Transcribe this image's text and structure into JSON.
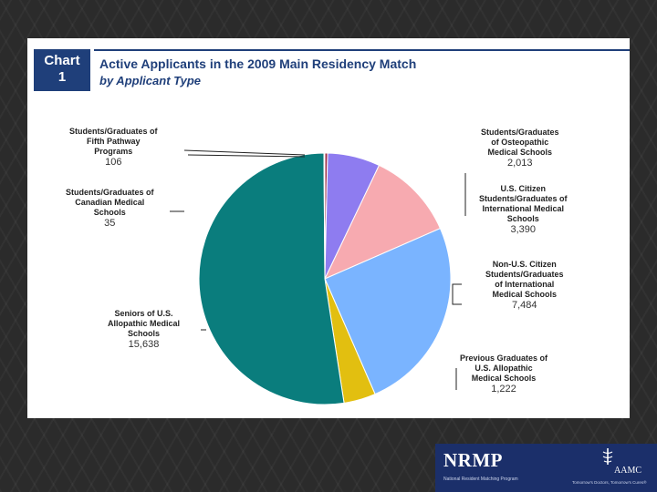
{
  "badge": {
    "line1": "Chart",
    "line2": "1"
  },
  "chart_data": {
    "type": "pie",
    "title": "Active Applicants in the 2009 Main Residency Match",
    "subtitle": "by Applicant Type",
    "start_angle_deg": 0,
    "direction": "clockwise",
    "slices": [
      {
        "label": "Students/Graduates of Fifth Pathway Programs",
        "value": 106,
        "value_text": "106",
        "color": "#a0304a"
      },
      {
        "label": "Students/Graduates of Osteopathic Medical Schools",
        "value": 2013,
        "value_text": "2,013",
        "color": "#8e7cf0"
      },
      {
        "label": "U.S. Citizen Students/Graduates of International Medical Schools",
        "value": 3390,
        "value_text": "3,390",
        "color": "#f7aab0"
      },
      {
        "label": "Non-U.S. Citizen Students/Graduates of International Medical Schools",
        "value": 7484,
        "value_text": "7,484",
        "color": "#7ab4ff"
      },
      {
        "label": "Previous Graduates of U.S. Allopathic Medical Schools",
        "value": 1222,
        "value_text": "1,222",
        "color": "#e2bf10"
      },
      {
        "label": "Seniors of U.S. Allopathic Medical Schools",
        "value": 15638,
        "value_text": "15,638",
        "color": "#0a7d7d"
      },
      {
        "label": "Students/Graduates of Canadian Medical Schools",
        "value": 35,
        "value_text": "35",
        "color": "#4b6fa8"
      }
    ]
  },
  "callouts": {
    "fifth": {
      "lines": [
        "Students/Graduates of",
        "Fifth Pathway",
        "Programs"
      ],
      "value": "106"
    },
    "canadian": {
      "lines": [
        "Students/Graduates of",
        "Canadian Medical",
        "Schools"
      ],
      "value": "35"
    },
    "seniors": {
      "lines": [
        "Seniors of U.S.",
        "Allopathic Medical",
        "Schools"
      ],
      "value": "15,638"
    },
    "osteo": {
      "lines": [
        "Students/Graduates",
        "of Osteopathic",
        "Medical Schools"
      ],
      "value": "2,013"
    },
    "usimg": {
      "lines": [
        "U.S. Citizen",
        "Students/Graduates of",
        "International Medical",
        "Schools"
      ],
      "value": "3,390"
    },
    "nonusimg": {
      "lines": [
        "Non-U.S. Citizen",
        "Students/Graduates",
        "of International",
        "Medical Schools"
      ],
      "value": "7,484"
    },
    "prevgrad": {
      "lines": [
        "Previous Graduates of",
        "U.S. Allopathic",
        "Medical Schools"
      ],
      "value": "1,222"
    }
  },
  "logos": {
    "nrmp": {
      "name": "NRMP",
      "tagline": "National Resident Matching Program"
    },
    "aamc": {
      "name": "AAMC",
      "tagline": "Tomorrow's Doctors, Tomorrow's Cures®"
    }
  }
}
